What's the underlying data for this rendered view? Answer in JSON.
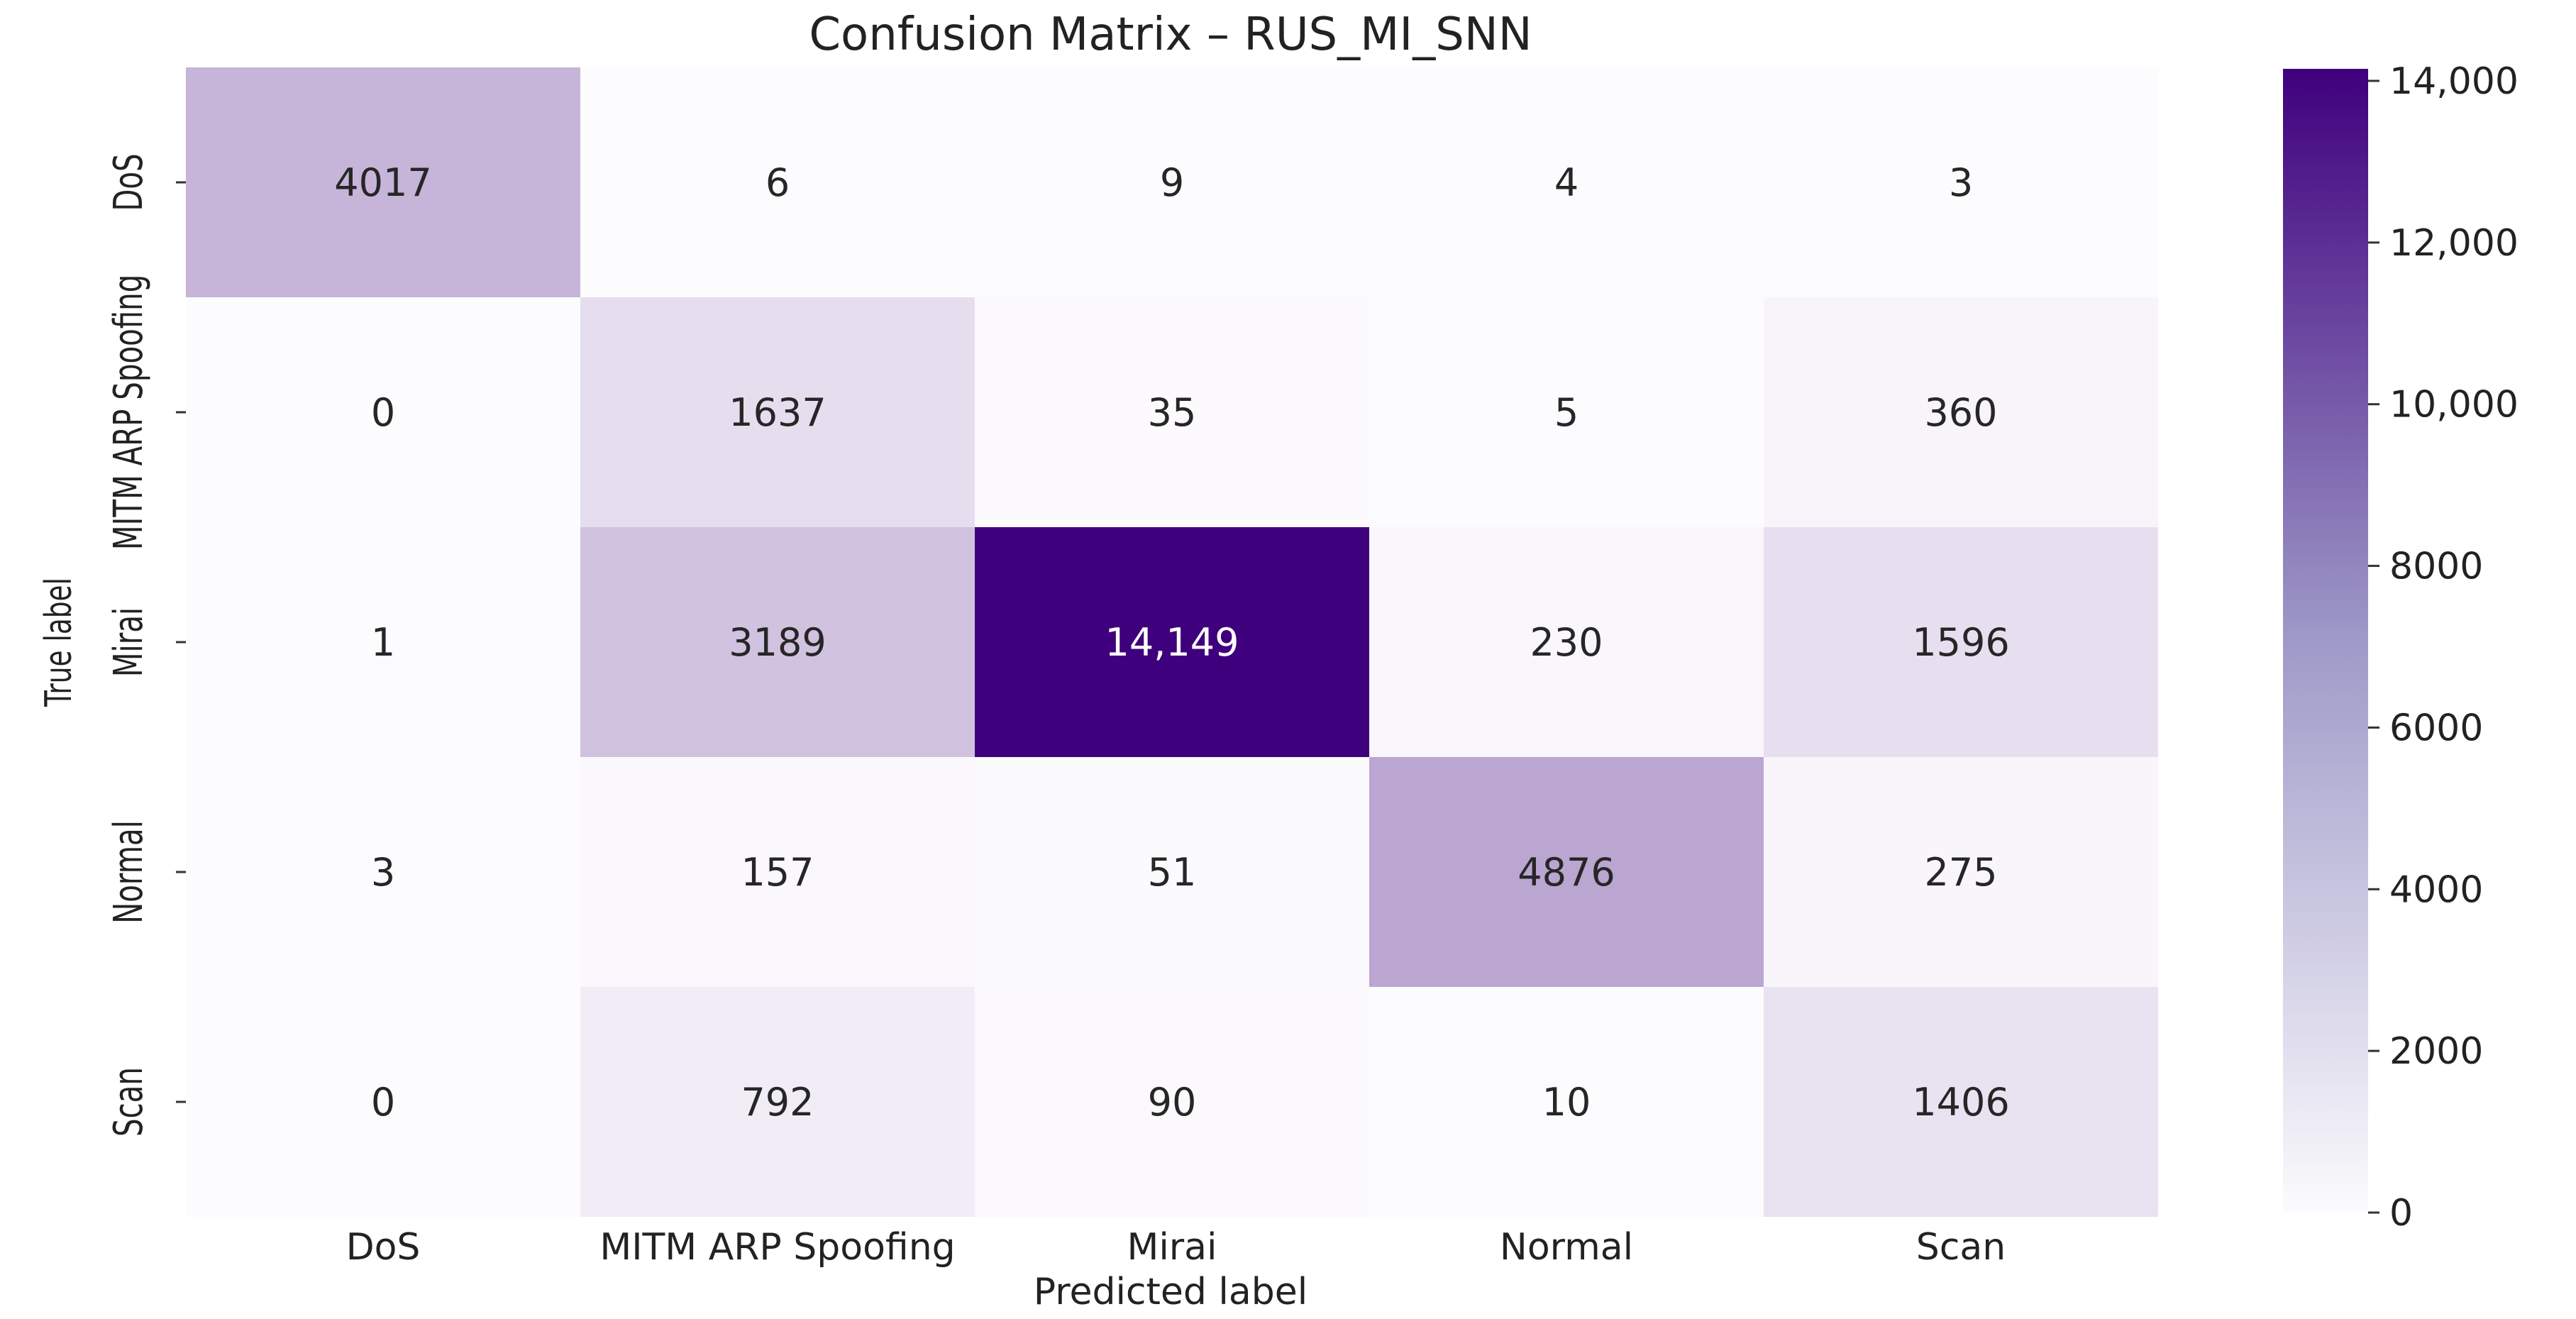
{
  "chart_data": {
    "type": "heatmap",
    "title": "Confusion Matrix – RUS_MI_SNN",
    "xlabel": "Predicted label",
    "ylabel": "True label",
    "x_categories": [
      "DoS",
      "MITM ARP Spoofing",
      "Mirai",
      "Normal",
      "Scan"
    ],
    "y_categories": [
      "DoS",
      "MITM ARP Spoofing",
      "Mirai",
      "Normal",
      "Scan"
    ],
    "values": [
      [
        4017,
        6,
        9,
        4,
        3
      ],
      [
        0,
        1637,
        35,
        5,
        360
      ],
      [
        1,
        3189,
        14149,
        230,
        1596
      ],
      [
        3,
        157,
        51,
        4876,
        275
      ],
      [
        0,
        792,
        90,
        10,
        1406
      ]
    ],
    "cell_labels": [
      [
        "4017",
        "6",
        "9",
        "4",
        "3"
      ],
      [
        "0",
        "1637",
        "35",
        "5",
        "360"
      ],
      [
        "1",
        "3189",
        "14,149",
        "230",
        "1596"
      ],
      [
        "3",
        "157",
        "51",
        "4876",
        "275"
      ],
      [
        "0",
        "792",
        "90",
        "10",
        "1406"
      ]
    ],
    "colorbar": {
      "min": 0,
      "max": 14149,
      "ticks": [
        0,
        2000,
        4000,
        6000,
        8000,
        10000,
        12000,
        14000
      ],
      "tick_labels": [
        "0",
        "2000",
        "4000",
        "6000",
        "8000",
        "10,000",
        "12,000",
        "14,000"
      ],
      "colormap": "Purples",
      "color_low": "#fcfbfd",
      "color_high": "#3f007d"
    }
  }
}
